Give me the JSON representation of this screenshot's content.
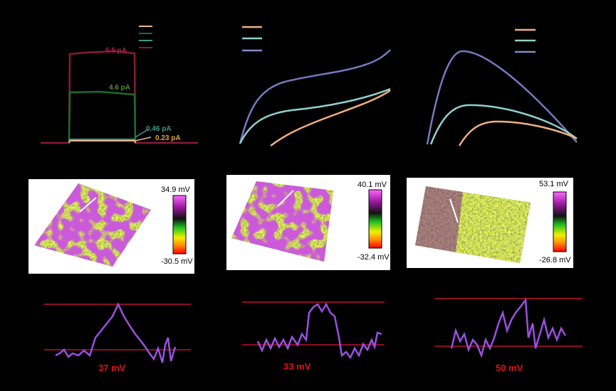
{
  "current_traces": {
    "labels": [
      "5.5 pA",
      "4.6 pA",
      "0.46 pA",
      "0.23 pA"
    ]
  },
  "potential_maps": [
    {
      "max": "34.9 mV",
      "min": "-30.5 mV"
    },
    {
      "max": "40.1 mV",
      "min": "-32.4 mV"
    },
    {
      "max": "53.1 mV",
      "min": "-26.8 mV"
    }
  ],
  "line_profiles": [
    {
      "label": "37 mV"
    },
    {
      "label": "33 mV"
    },
    {
      "label": "50 mV"
    }
  ]
}
